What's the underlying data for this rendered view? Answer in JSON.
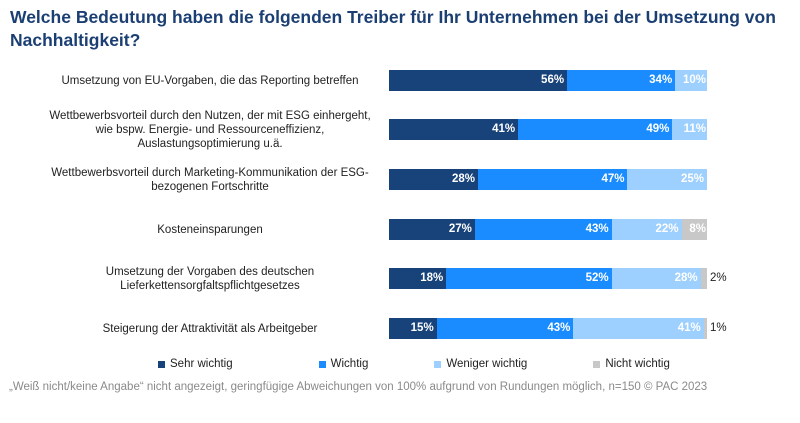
{
  "title": "Welche Bedeutung haben die folgenden Treiber für Ihr Unternehmen bei der Umsetzung von Nachhaltigkeit?",
  "colors": {
    "sehr_wichtig": "#17427a",
    "wichtig": "#1a8cff",
    "weniger_wichtig": "#9dd0ff",
    "nicht_wichtig": "#c8c8c8"
  },
  "chart_data": {
    "type": "bar",
    "orientation": "horizontal",
    "stacked": true,
    "categories": [
      "Umsetzung von EU-Vorgaben, die das Reporting betreffen",
      "Wettbewerbsvorteil durch den Nutzen, der mit ESG einhergeht, wie bspw. Energie- und Ressourceneffizienz, Auslastungsoptimierung u.ä.",
      "Wettbewerbsvorteil durch Marketing-Kommunikation der ESG-bezogenen Fortschritte",
      "Kosteneinsparungen",
      "Umsetzung der Vorgaben des deutschen Lieferkettensorgfaltspflichtgesetzes",
      "Steigerung der Attraktivität als Arbeitgeber"
    ],
    "series": [
      {
        "name": "Sehr wichtig",
        "values": [
          56,
          41,
          28,
          27,
          18,
          15
        ]
      },
      {
        "name": "Wichtig",
        "values": [
          34,
          49,
          47,
          43,
          52,
          43
        ]
      },
      {
        "name": "Weniger wichtig",
        "values": [
          10,
          11,
          25,
          22,
          28,
          41
        ]
      },
      {
        "name": "Nicht wichtig",
        "values": [
          0,
          0,
          0,
          8,
          2,
          1
        ]
      }
    ],
    "value_format": "{v}%",
    "legend_position": "bottom"
  },
  "legend": [
    "Sehr wichtig",
    "Wichtig",
    "Weniger wichtig",
    "Nicht wichtig"
  ],
  "footnote": "„Weiß nicht/keine Angabe“ nicht angezeigt, geringfügige Abweichungen von 100% aufgrund von Rundungen möglich, n=150 © PAC 2023"
}
